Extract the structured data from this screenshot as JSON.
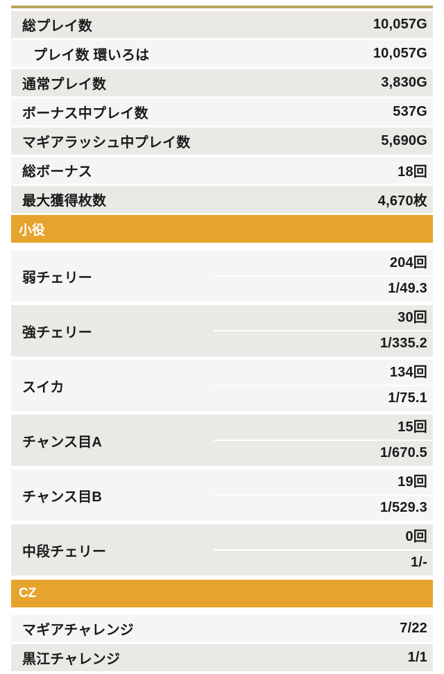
{
  "colors": {
    "top_line": "#b7a45e",
    "section_header_bg": "#e6a42e",
    "section_header_text": "#ffffff",
    "row_dark": "#eae9e6",
    "row_light": "#f6f5f3",
    "text": "#1a1a1a"
  },
  "summary": {
    "rows": [
      {
        "label": "総プレイ数",
        "value": "10,057G"
      },
      {
        "label": "プレイ数 環いろは",
        "value": "10,057G"
      },
      {
        "label": "通常プレイ数",
        "value": "3,830G"
      },
      {
        "label": "ボーナス中プレイ数",
        "value": "537G"
      },
      {
        "label": "マギアラッシュ中プレイ数",
        "value": "5,690G"
      },
      {
        "label": "総ボーナス",
        "value": "18回"
      },
      {
        "label": "最大獲得枚数",
        "value": "4,670枚"
      }
    ]
  },
  "koyaku": {
    "header": "小役",
    "rows": [
      {
        "label": "弱チェリー",
        "count": "204回",
        "rate": "1/49.3"
      },
      {
        "label": "強チェリー",
        "count": "30回",
        "rate": "1/335.2"
      },
      {
        "label": "スイカ",
        "count": "134回",
        "rate": "1/75.1"
      },
      {
        "label": "チャンス目A",
        "count": "15回",
        "rate": "1/670.5"
      },
      {
        "label": "チャンス目B",
        "count": "19回",
        "rate": "1/529.3"
      },
      {
        "label": "中段チェリー",
        "count": "0回",
        "rate": "1/-"
      }
    ]
  },
  "cz": {
    "header": "CZ",
    "rows": [
      {
        "label": "マギアチャレンジ",
        "value": "7/22"
      },
      {
        "label": "黒江チャレンジ",
        "value": "1/1"
      }
    ]
  }
}
